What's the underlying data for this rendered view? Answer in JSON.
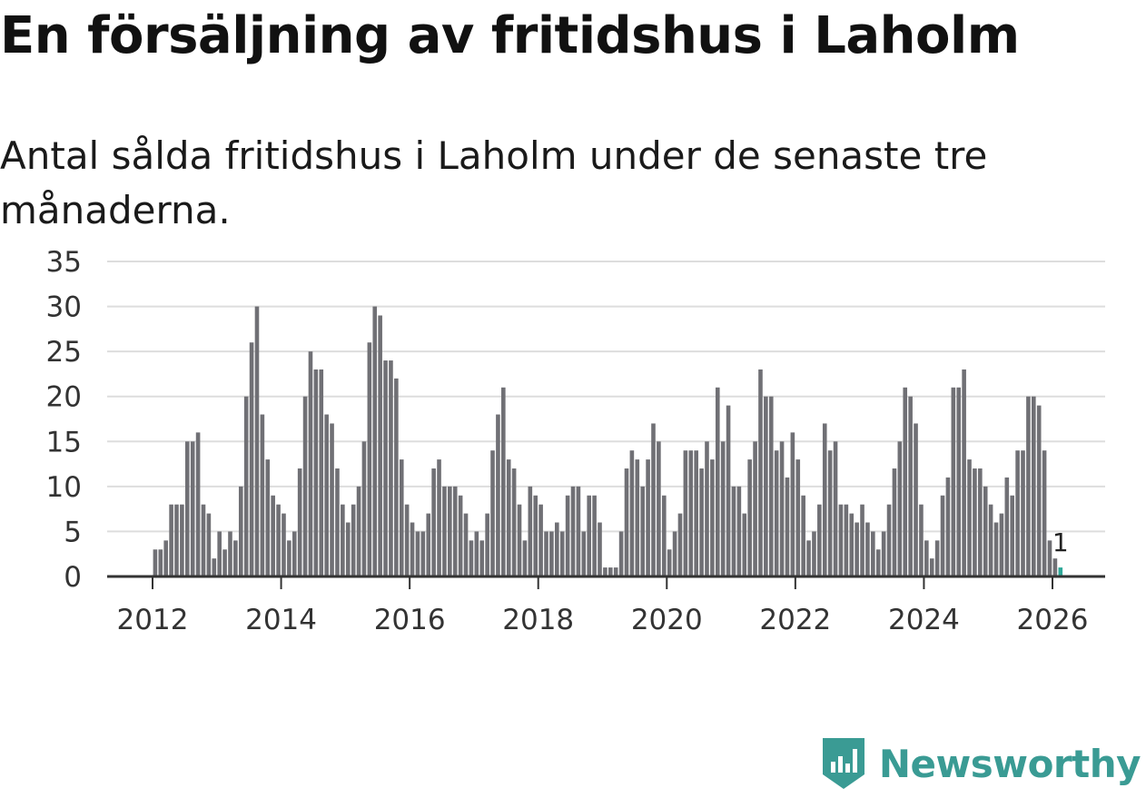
{
  "title": "En försäljning av fritidshus i Laholm",
  "subtitle": "Antal sålda fritidshus i Laholm under de senaste tre månaderna.",
  "brand": {
    "name": "Newsworthy",
    "logo_icon": "newsworthy-logo-icon"
  },
  "colors": {
    "bar": "#707075",
    "highlight": "#2fa899",
    "grid": "#dddddd",
    "axis": "#333333",
    "brand": "#3a9b94"
  },
  "chart_data": {
    "type": "bar",
    "title": "En försäljning av fritidshus i Laholm",
    "subtitle": "Antal sålda fritidshus i Laholm under de senaste tre månaderna.",
    "xlabel": "",
    "ylabel": "",
    "ylim": [
      0,
      35
    ],
    "yticks": [
      0,
      5,
      10,
      15,
      20,
      25,
      30,
      35
    ],
    "xticks": [
      2012,
      2014,
      2016,
      2018,
      2020,
      2022,
      2024,
      2026
    ],
    "grid": true,
    "start": "2012-01",
    "end": "2026-01",
    "highlight_label": "1",
    "values": [
      3,
      3,
      4,
      8,
      8,
      8,
      15,
      15,
      16,
      8,
      7,
      2,
      5,
      3,
      5,
      4,
      10,
      20,
      26,
      30,
      18,
      13,
      9,
      8,
      7,
      4,
      5,
      12,
      20,
      25,
      23,
      23,
      18,
      17,
      12,
      8,
      6,
      8,
      10,
      15,
      26,
      30,
      29,
      24,
      24,
      22,
      13,
      8,
      6,
      5,
      5,
      7,
      12,
      13,
      10,
      10,
      10,
      9,
      7,
      4,
      5,
      4,
      7,
      14,
      18,
      21,
      13,
      12,
      8,
      4,
      10,
      9,
      8,
      5,
      5,
      6,
      5,
      9,
      10,
      10,
      5,
      9,
      9,
      6,
      1,
      1,
      1,
      5,
      12,
      14,
      13,
      10,
      13,
      17,
      15,
      9,
      3,
      5,
      7,
      14,
      14,
      14,
      12,
      15,
      13,
      21,
      15,
      19,
      10,
      10,
      7,
      13,
      15,
      23,
      20,
      20,
      14,
      15,
      11,
      16,
      13,
      9,
      4,
      5,
      8,
      17,
      14,
      15,
      8,
      8,
      7,
      6,
      8,
      6,
      5,
      3,
      5,
      8,
      12,
      15,
      21,
      20,
      17,
      8,
      4,
      2,
      4,
      9,
      11,
      21,
      21,
      23,
      13,
      12,
      12,
      10,
      8,
      6,
      7,
      11,
      9,
      14,
      14,
      20,
      20,
      19,
      14,
      4,
      2,
      1
    ]
  }
}
